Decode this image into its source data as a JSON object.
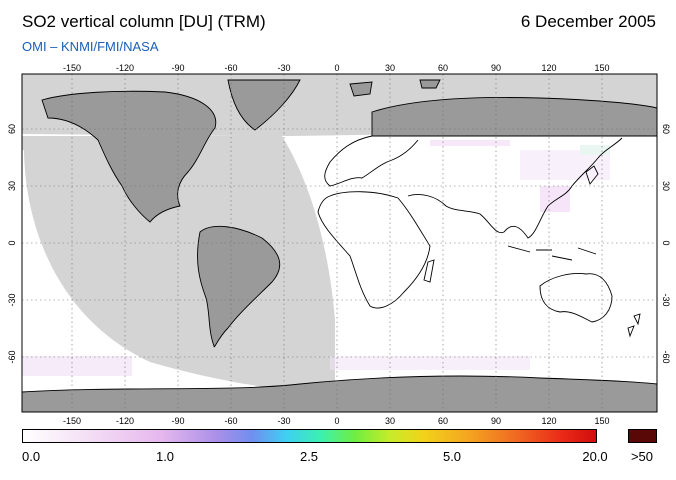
{
  "header": {
    "title": "SO2 vertical column [DU] (TRM)",
    "date": "6 December 2005",
    "credit": "OMI  –  KNMI/FMI/NASA"
  },
  "map": {
    "lon_ticks": [
      "-150",
      "-120",
      "-90",
      "-60",
      "-30",
      "0",
      "30",
      "60",
      "90",
      "120",
      "150"
    ],
    "lat_ticks": [
      "60",
      "30",
      "0",
      "-30",
      "-60"
    ],
    "land_color": "#9a9a9a",
    "no_data_color": "#d4d4d4",
    "coast_color": "#000000"
  },
  "legend": {
    "labels": [
      "0.0",
      "1.0",
      "2.5",
      "5.0",
      "20.0"
    ],
    "over_label": ">50",
    "over_color": "#5a0708"
  }
}
